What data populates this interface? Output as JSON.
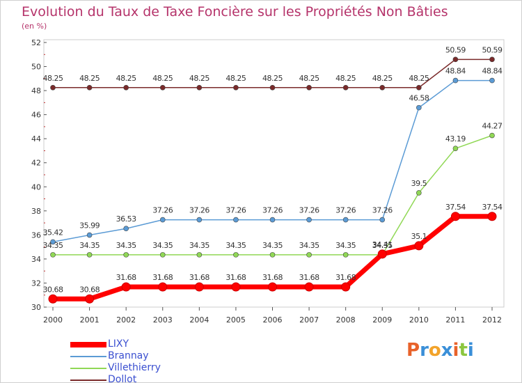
{
  "title": "Evolution du Taux de Taxe Foncière sur les Propriétés Non Bâties",
  "subtitle": "(en %)",
  "logo": {
    "text": "Proxiti",
    "letters": [
      "P",
      "r",
      "o",
      "x",
      "i",
      "t",
      "i"
    ],
    "colors": [
      "#e8622a",
      "#3a8fd8",
      "#f2a32a",
      "#3a8fd8",
      "#e8622a",
      "#8cc63f",
      "#3a8fd8"
    ]
  },
  "chart_data": {
    "type": "line",
    "title": "Evolution du Taux de Taxe Foncière sur les Propriétés Non Bâties",
    "ylabel": "(en %)",
    "xlabel": "",
    "x": [
      "2000",
      "2001",
      "2002",
      "2003",
      "2004",
      "2005",
      "2006",
      "2007",
      "2008",
      "2009",
      "2010",
      "2011",
      "2012"
    ],
    "ylim": [
      30,
      52
    ],
    "yticks": [
      30,
      32,
      34,
      36,
      38,
      40,
      42,
      44,
      46,
      48,
      50,
      52
    ],
    "grid": false,
    "series": [
      {
        "name": "LIXY",
        "color": "#ff0000",
        "values": [
          30.68,
          30.68,
          31.68,
          31.68,
          31.68,
          31.68,
          31.68,
          31.68,
          31.68,
          34.41,
          35.1,
          37.54,
          37.54
        ],
        "labels": [
          "30.68",
          "30.68",
          "31.68",
          "31.68",
          "31.68",
          "31.68",
          "31.68",
          "31.68",
          "31.68",
          "34.41",
          "35.1",
          "37.54",
          "37.54"
        ]
      },
      {
        "name": "Brannay",
        "color": "#5b9bd5",
        "values": [
          35.42,
          35.99,
          36.53,
          37.26,
          37.26,
          37.26,
          37.26,
          37.26,
          37.26,
          37.26,
          46.58,
          48.84,
          48.84
        ],
        "labels": [
          "35.42",
          "35.99",
          "36.53",
          "37.26",
          "37.26",
          "37.26",
          "37.26",
          "37.26",
          "37.26",
          "37.26",
          "46.58",
          "48.84",
          "48.84"
        ]
      },
      {
        "name": "Villethierry",
        "color": "#90d855",
        "values": [
          34.35,
          34.35,
          34.35,
          34.35,
          34.35,
          34.35,
          34.35,
          34.35,
          34.35,
          34.35,
          39.5,
          43.19,
          44.27
        ],
        "labels": [
          "34.35",
          "34.35",
          "34.35",
          "34.35",
          "34.35",
          "34.35",
          "34.35",
          "34.35",
          "34.35",
          "34.35",
          "39.5",
          "43.19",
          "44.27"
        ]
      },
      {
        "name": "Dollot",
        "color": "#7a2a2a",
        "values": [
          48.25,
          48.25,
          48.25,
          48.25,
          48.25,
          48.25,
          48.25,
          48.25,
          48.25,
          48.25,
          48.25,
          50.59,
          50.59
        ],
        "labels": [
          "48.25",
          "48.25",
          "48.25",
          "48.25",
          "48.25",
          "48.25",
          "48.25",
          "48.25",
          "48.25",
          "48.25",
          "48.25",
          "50.59",
          "50.59"
        ]
      }
    ]
  }
}
